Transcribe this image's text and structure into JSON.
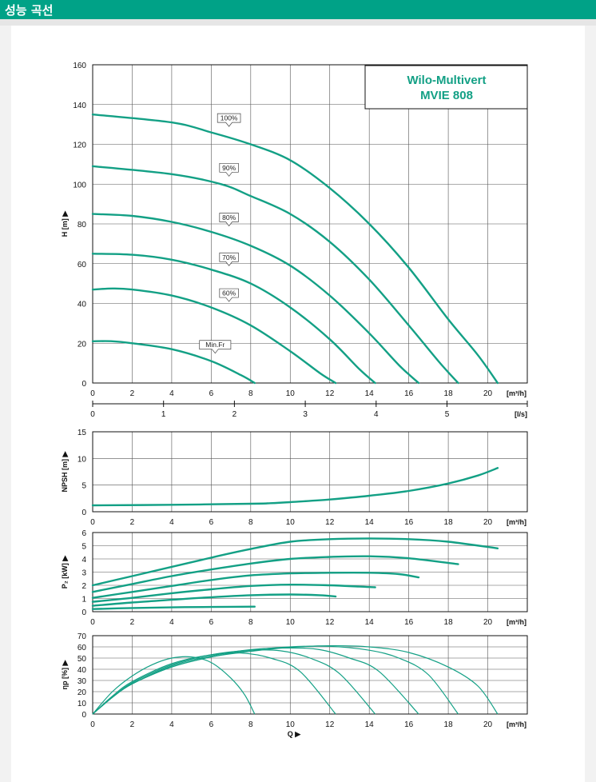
{
  "header": {
    "title": "성능 곡선"
  },
  "brand": {
    "line1": "Wilo-Multivert",
    "line2": "MVIE 808"
  },
  "colors": {
    "header": "#00a287",
    "curve": "#13a085"
  },
  "chart_data": [
    {
      "id": "head",
      "type": "line",
      "ylabel": "H [m] ▶",
      "xunit": "[m³/h]",
      "xlim": [
        0,
        22
      ],
      "ylim": [
        0,
        160
      ],
      "xticks": [
        0,
        2,
        4,
        6,
        8,
        10,
        12,
        14,
        16,
        18,
        20
      ],
      "yticks": [
        0,
        20,
        40,
        60,
        80,
        100,
        120,
        140,
        160
      ],
      "secondary_x": {
        "unit": "[l/s]",
        "ticks": [
          0,
          1,
          2,
          3,
          4,
          5
        ]
      },
      "series": [
        {
          "name": "100%",
          "x": [
            0,
            4,
            6,
            8,
            10,
            12,
            14,
            16,
            18,
            19.5,
            20.5
          ],
          "y": [
            135,
            131,
            126,
            120,
            112,
            98,
            80,
            58,
            32,
            14,
            0
          ]
        },
        {
          "name": "90%",
          "x": [
            0,
            4,
            6.5,
            8,
            10,
            12,
            14,
            16,
            17.5,
            18.5
          ],
          "y": [
            109,
            105,
            100,
            94,
            85,
            71,
            52,
            29,
            11,
            0
          ]
        },
        {
          "name": "80%",
          "x": [
            0,
            2,
            4,
            6,
            8,
            10,
            12,
            14,
            15.5,
            16.5
          ],
          "y": [
            85,
            84,
            81,
            76,
            69,
            59,
            44,
            25,
            9,
            0
          ]
        },
        {
          "name": "70%",
          "x": [
            0,
            2,
            4,
            6,
            8,
            10,
            12,
            13.5,
            14.3
          ],
          "y": [
            65,
            64.5,
            62,
            57,
            50,
            38,
            22,
            7,
            0
          ]
        },
        {
          "name": "60%",
          "x": [
            0,
            1,
            2,
            4,
            6,
            8,
            10,
            11.5,
            12.3
          ],
          "y": [
            47,
            47.5,
            47,
            44,
            38,
            29,
            16,
            5,
            0
          ]
        },
        {
          "name": "Min.Fr",
          "x": [
            0,
            1,
            2,
            4,
            6,
            7.5,
            8.2
          ],
          "y": [
            21,
            21,
            20,
            17,
            11,
            4,
            0
          ]
        }
      ],
      "labels": [
        {
          "text": "100%",
          "x": 6.9,
          "y": 131
        },
        {
          "text": "90%",
          "x": 6.9,
          "y": 106
        },
        {
          "text": "80%",
          "x": 6.9,
          "y": 81
        },
        {
          "text": "70%",
          "x": 6.9,
          "y": 61
        },
        {
          "text": "60%",
          "x": 6.9,
          "y": 43
        },
        {
          "text": "Min.Fr",
          "x": 6.2,
          "y": 17
        }
      ]
    },
    {
      "id": "npsh",
      "type": "line",
      "ylabel": "NPSH [m] ▶",
      "xunit": "[m³/h]",
      "xlim": [
        0,
        22
      ],
      "ylim": [
        0,
        15
      ],
      "xticks": [
        0,
        2,
        4,
        6,
        8,
        10,
        12,
        14,
        16,
        18,
        20
      ],
      "yticks": [
        0,
        5,
        10,
        15
      ],
      "series": [
        {
          "name": "",
          "x": [
            0,
            4,
            8,
            9,
            10,
            12,
            14,
            16,
            18,
            19.5,
            20.5
          ],
          "y": [
            1.2,
            1.3,
            1.5,
            1.6,
            1.8,
            2.3,
            3.0,
            3.9,
            5.3,
            6.8,
            8.2
          ]
        }
      ]
    },
    {
      "id": "power",
      "type": "line",
      "ylabel": "P₂ [kW] ▶",
      "xunit": "[m³/h]",
      "xlim": [
        0,
        22
      ],
      "ylim": [
        0,
        6
      ],
      "xticks": [
        0,
        2,
        4,
        6,
        8,
        10,
        12,
        14,
        16,
        18,
        20
      ],
      "yticks": [
        0,
        1,
        2,
        3,
        4,
        5,
        6
      ],
      "series": [
        {
          "name": "100%",
          "x": [
            0,
            2,
            4,
            6,
            8,
            10,
            12,
            14,
            16,
            18,
            20.5
          ],
          "y": [
            2.0,
            2.7,
            3.4,
            4.1,
            4.75,
            5.3,
            5.5,
            5.55,
            5.5,
            5.3,
            4.8
          ]
        },
        {
          "name": "90%",
          "x": [
            0,
            2,
            4,
            6,
            8,
            10,
            12,
            14,
            16,
            18.5
          ],
          "y": [
            1.5,
            2.1,
            2.7,
            3.2,
            3.65,
            4.0,
            4.15,
            4.2,
            4.05,
            3.6
          ]
        },
        {
          "name": "80%",
          "x": [
            0,
            2,
            4,
            6,
            8,
            10,
            12,
            14,
            15.5,
            16.5
          ],
          "y": [
            1.05,
            1.5,
            1.95,
            2.4,
            2.75,
            2.9,
            2.95,
            2.95,
            2.85,
            2.6
          ]
        },
        {
          "name": "70%",
          "x": [
            0,
            2,
            4,
            6,
            8,
            10,
            12,
            13.5,
            14.3
          ],
          "y": [
            0.75,
            1.05,
            1.4,
            1.7,
            1.95,
            2.05,
            2.0,
            1.9,
            1.85
          ]
        },
        {
          "name": "60%",
          "x": [
            0,
            2,
            4,
            6,
            8,
            10,
            11.5,
            12.3
          ],
          "y": [
            0.45,
            0.7,
            0.9,
            1.1,
            1.25,
            1.3,
            1.25,
            1.15
          ]
        },
        {
          "name": "Min.Fr",
          "x": [
            0,
            2,
            4,
            6,
            8.2
          ],
          "y": [
            0.2,
            0.28,
            0.33,
            0.36,
            0.38
          ]
        }
      ]
    },
    {
      "id": "efficiency",
      "type": "line",
      "ylabel": "ηp [%] ▶",
      "xunit": "[m³/h]",
      "xlabel": "Q ▶",
      "xlim": [
        0,
        22
      ],
      "ylim": [
        0,
        70
      ],
      "xticks": [
        0,
        2,
        4,
        6,
        8,
        10,
        12,
        14,
        16,
        18,
        20
      ],
      "yticks": [
        0,
        10,
        20,
        30,
        40,
        50,
        60,
        70
      ],
      "series": [
        {
          "name": "100%",
          "x": [
            0,
            1,
            2,
            4,
            6,
            8,
            10,
            12,
            14,
            16,
            18,
            19.5,
            20.5
          ],
          "y": [
            0,
            15,
            27,
            42,
            51,
            56,
            59.5,
            61,
            60,
            55,
            42,
            25,
            0
          ]
        },
        {
          "name": "90%",
          "x": [
            0,
            1,
            2,
            4,
            6,
            8,
            10,
            12,
            14,
            15.5,
            17,
            18.5
          ],
          "y": [
            0,
            15,
            27,
            42,
            51,
            57,
            60,
            60.5,
            57,
            50,
            35,
            0
          ]
        },
        {
          "name": "80%",
          "x": [
            0,
            1,
            2,
            4,
            6,
            8,
            10,
            11.5,
            13,
            14.5,
            16.5
          ],
          "y": [
            0,
            15,
            27,
            43,
            52,
            57.5,
            59,
            57.5,
            50,
            38,
            0
          ]
        },
        {
          "name": "70%",
          "x": [
            0,
            1,
            2,
            4,
            6,
            8,
            9.5,
            11,
            12.5,
            14.3
          ],
          "y": [
            0,
            15,
            28,
            44,
            53,
            57,
            56.5,
            50,
            36,
            0
          ]
        },
        {
          "name": "60%",
          "x": [
            0,
            1,
            2,
            4,
            6,
            7.5,
            9,
            10.5,
            12.3
          ],
          "y": [
            0,
            16,
            29,
            45,
            53,
            54.5,
            50,
            38,
            0
          ]
        },
        {
          "name": "Min.Fr",
          "x": [
            0,
            1,
            2,
            3,
            4,
            5,
            6,
            7,
            7.7,
            8.2
          ],
          "y": [
            0,
            20,
            34,
            44,
            50,
            51,
            46,
            32,
            17,
            0
          ]
        }
      ]
    }
  ]
}
